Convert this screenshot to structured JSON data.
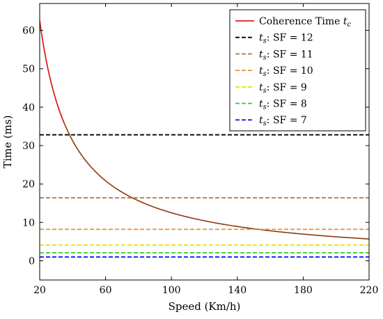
{
  "chart_data": {
    "type": "line",
    "title": "",
    "xlabel": "Speed (Km/h)",
    "ylabel": "Time (ms)",
    "xlim": [
      20,
      220
    ],
    "ylim": [
      -5,
      67
    ],
    "xticks": [
      20,
      60,
      100,
      140,
      180,
      220
    ],
    "yticks": [
      0,
      10,
      20,
      30,
      40,
      50,
      60
    ],
    "grid": false,
    "legend_position": "top-right",
    "series": [
      {
        "name_parts": [
          "Coherence Time ",
          "t",
          "c",
          ""
        ],
        "style": "solid",
        "color": "#e41a1c",
        "mid_color": "#8b3a0e",
        "x": [
          20,
          25,
          30,
          35,
          40,
          45,
          50,
          60,
          70,
          80,
          100,
          120,
          140,
          160,
          180,
          200,
          220
        ],
        "y": [
          62.5,
          50.0,
          41.7,
          35.7,
          31.3,
          27.8,
          25.0,
          20.8,
          17.9,
          15.6,
          12.5,
          10.4,
          8.9,
          7.8,
          6.9,
          6.3,
          5.7
        ]
      },
      {
        "name_parts": [
          "",
          "t",
          "s",
          ": SF = 12"
        ],
        "style": "dashed",
        "color": "#000000",
        "x": [
          20,
          220
        ],
        "y": [
          32.8,
          32.8
        ]
      },
      {
        "name_parts": [
          "",
          "t",
          "s",
          ": SF = 11"
        ],
        "style": "dashed",
        "color": "#b87333",
        "x": [
          20,
          220
        ],
        "y": [
          16.4,
          16.4
        ]
      },
      {
        "name_parts": [
          "",
          "t",
          "s",
          ": SF = 10"
        ],
        "style": "dashed",
        "color": "#e69138",
        "x": [
          20,
          220
        ],
        "y": [
          8.2,
          8.2
        ]
      },
      {
        "name_parts": [
          "",
          "t",
          "s",
          ": SF = 9"
        ],
        "style": "dashed",
        "color": "#e6e600",
        "x": [
          20,
          220
        ],
        "y": [
          4.1,
          4.1
        ]
      },
      {
        "name_parts": [
          "",
          "t",
          "s",
          ": SF = 8"
        ],
        "style": "dashed",
        "color": "#33cc33",
        "x": [
          20,
          220
        ],
        "y": [
          2.1,
          2.1
        ]
      },
      {
        "name_parts": [
          "",
          "t",
          "s",
          ": SF = 7"
        ],
        "style": "dashed",
        "color": "#1a1aff",
        "x": [
          20,
          220
        ],
        "y": [
          1.0,
          1.0
        ]
      }
    ]
  }
}
